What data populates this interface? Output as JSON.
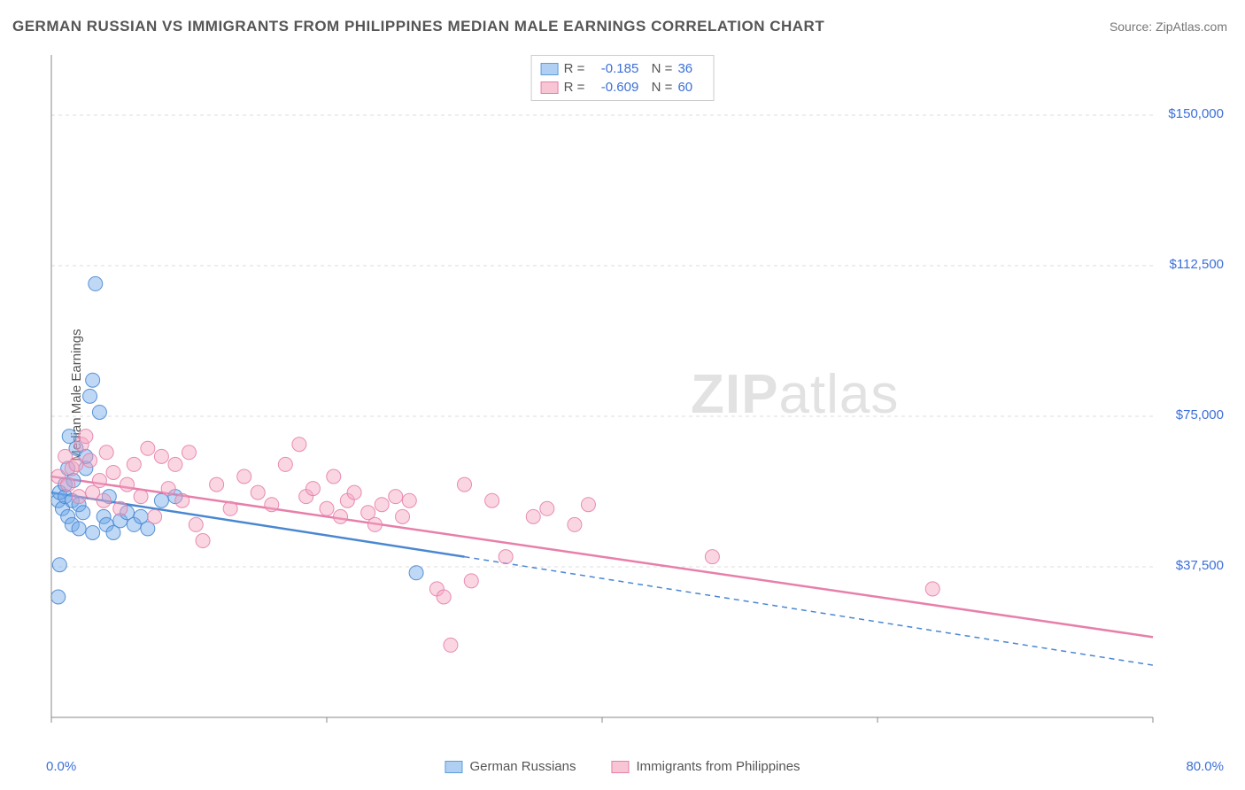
{
  "title": "GERMAN RUSSIAN VS IMMIGRANTS FROM PHILIPPINES MEDIAN MALE EARNINGS CORRELATION CHART",
  "source": "Source: ZipAtlas.com",
  "ylabel": "Median Male Earnings",
  "watermark": "ZIPatlas",
  "chart": {
    "type": "scatter",
    "xlim": [
      0,
      80
    ],
    "ylim": [
      0,
      165000
    ],
    "xlim_labels": [
      "0.0%",
      "80.0%"
    ],
    "ytick_values": [
      37500,
      75000,
      112500,
      150000
    ],
    "ytick_labels": [
      "$37,500",
      "$75,000",
      "$112,500",
      "$150,000"
    ],
    "background_color": "#ffffff",
    "grid_color": "#dddddd",
    "axis_color": "#888888",
    "marker_radius": 8,
    "marker_opacity": 0.45,
    "marker_stroke_opacity": 0.9,
    "series": [
      {
        "name": "German Russians",
        "color": "#6fa8e8",
        "stroke": "#4a87d1",
        "R": "-0.185",
        "N": "36",
        "trend_x": [
          0,
          30
        ],
        "trend_y": [
          56000,
          40000
        ],
        "trend_extrap_x": [
          30,
          80
        ],
        "trend_extrap_y": [
          40000,
          13000
        ],
        "points": [
          [
            0.5,
            54000
          ],
          [
            0.6,
            56000
          ],
          [
            0.8,
            52000
          ],
          [
            1.0,
            55000
          ],
          [
            1.0,
            58000
          ],
          [
            1.2,
            50000
          ],
          [
            1.2,
            62000
          ],
          [
            1.3,
            70000
          ],
          [
            1.5,
            48000
          ],
          [
            1.5,
            54000
          ],
          [
            1.6,
            59000
          ],
          [
            1.8,
            67000
          ],
          [
            2.0,
            53000
          ],
          [
            2.0,
            47000
          ],
          [
            2.3,
            51000
          ],
          [
            2.5,
            62000
          ],
          [
            2.5,
            65000
          ],
          [
            2.8,
            80000
          ],
          [
            3.0,
            84000
          ],
          [
            3.2,
            108000
          ],
          [
            3.0,
            46000
          ],
          [
            3.5,
            76000
          ],
          [
            3.8,
            50000
          ],
          [
            4.0,
            48000
          ],
          [
            4.2,
            55000
          ],
          [
            4.5,
            46000
          ],
          [
            5.0,
            49000
          ],
          [
            5.5,
            51000
          ],
          [
            6.0,
            48000
          ],
          [
            6.5,
            50000
          ],
          [
            7.0,
            47000
          ],
          [
            8.0,
            54000
          ],
          [
            9.0,
            55000
          ],
          [
            0.5,
            30000
          ],
          [
            0.6,
            38000
          ],
          [
            26.5,
            36000
          ]
        ]
      },
      {
        "name": "Immigrants from Philippines",
        "color": "#f3a5c0",
        "stroke": "#e77faa",
        "R": "-0.609",
        "N": "60",
        "trend_x": [
          0,
          80
        ],
        "trend_y": [
          60000,
          20000
        ],
        "points": [
          [
            0.5,
            60000
          ],
          [
            1.0,
            65000
          ],
          [
            1.2,
            58000
          ],
          [
            1.5,
            62000
          ],
          [
            1.8,
            63000
          ],
          [
            2.0,
            55000
          ],
          [
            2.2,
            68000
          ],
          [
            2.5,
            70000
          ],
          [
            2.8,
            64000
          ],
          [
            3.0,
            56000
          ],
          [
            3.5,
            59000
          ],
          [
            3.8,
            54000
          ],
          [
            4.0,
            66000
          ],
          [
            4.5,
            61000
          ],
          [
            5.0,
            52000
          ],
          [
            5.5,
            58000
          ],
          [
            6.0,
            63000
          ],
          [
            6.5,
            55000
          ],
          [
            7.0,
            67000
          ],
          [
            7.5,
            50000
          ],
          [
            8.0,
            65000
          ],
          [
            8.5,
            57000
          ],
          [
            9.0,
            63000
          ],
          [
            9.5,
            54000
          ],
          [
            10.0,
            66000
          ],
          [
            10.5,
            48000
          ],
          [
            11.0,
            44000
          ],
          [
            12.0,
            58000
          ],
          [
            13.0,
            52000
          ],
          [
            14.0,
            60000
          ],
          [
            15.0,
            56000
          ],
          [
            16.0,
            53000
          ],
          [
            17.0,
            63000
          ],
          [
            18.0,
            68000
          ],
          [
            18.5,
            55000
          ],
          [
            19.0,
            57000
          ],
          [
            20.0,
            52000
          ],
          [
            20.5,
            60000
          ],
          [
            21.0,
            50000
          ],
          [
            21.5,
            54000
          ],
          [
            22.0,
            56000
          ],
          [
            23.0,
            51000
          ],
          [
            23.5,
            48000
          ],
          [
            24.0,
            53000
          ],
          [
            25.0,
            55000
          ],
          [
            25.5,
            50000
          ],
          [
            26.0,
            54000
          ],
          [
            28.0,
            32000
          ],
          [
            28.5,
            30000
          ],
          [
            29.0,
            18000
          ],
          [
            30.0,
            58000
          ],
          [
            30.5,
            34000
          ],
          [
            32.0,
            54000
          ],
          [
            33.0,
            40000
          ],
          [
            35.0,
            50000
          ],
          [
            36.0,
            52000
          ],
          [
            48.0,
            40000
          ],
          [
            64.0,
            32000
          ],
          [
            38.0,
            48000
          ],
          [
            39.0,
            53000
          ]
        ]
      }
    ]
  },
  "legend_bottom": [
    {
      "swatch": "blue",
      "label": "German Russians"
    },
    {
      "swatch": "pink",
      "label": "Immigrants from Philippines"
    }
  ]
}
